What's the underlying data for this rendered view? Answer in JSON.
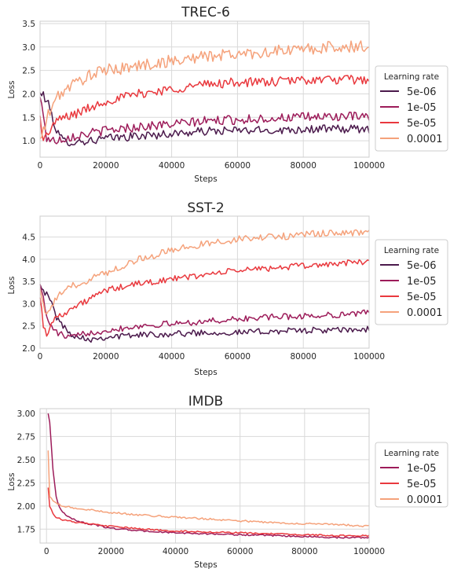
{
  "chart_data": [
    {
      "type": "line",
      "title": "TREC-6",
      "xlabel": "Steps",
      "ylabel": "Loss",
      "xlim": [
        0,
        100000
      ],
      "ylim": [
        0.65,
        3.55
      ],
      "xticks": [
        0,
        20000,
        40000,
        60000,
        80000,
        100000
      ],
      "xtick_labels": [
        "0",
        "20000",
        "40000",
        "60000",
        "80000",
        "100000"
      ],
      "yticks": [
        1.0,
        1.5,
        2.0,
        2.5,
        3.0,
        3.5
      ],
      "ytick_labels": [
        "1.0",
        "1.5",
        "2.0",
        "2.5",
        "3.0",
        "3.5"
      ],
      "grid": true,
      "legend": {
        "title": "Learning rate",
        "placement": "right-outside"
      },
      "series": [
        {
          "name": "5e-06",
          "color": "#4b1a4c",
          "x": [
            0,
            1000,
            3000,
            5000,
            7000,
            10000,
            15000,
            20000,
            30000,
            40000,
            50000,
            60000,
            70000,
            80000,
            90000,
            100000
          ],
          "y": [
            2.0,
            1.98,
            1.7,
            1.2,
            1.0,
            0.97,
            1.0,
            1.05,
            1.1,
            1.15,
            1.2,
            1.22,
            1.22,
            1.25,
            1.25,
            1.25
          ],
          "noise": 0.09
        },
        {
          "name": "1e-05",
          "color": "#9d1c5a",
          "x": [
            0,
            1000,
            2000,
            4000,
            7000,
            10000,
            20000,
            30000,
            40000,
            50000,
            60000,
            70000,
            80000,
            90000,
            100000
          ],
          "y": [
            1.9,
            1.6,
            1.05,
            1.0,
            1.05,
            1.1,
            1.22,
            1.3,
            1.35,
            1.42,
            1.45,
            1.48,
            1.5,
            1.52,
            1.5
          ],
          "noise": 0.1
        },
        {
          "name": "5e-05",
          "color": "#e9393e",
          "x": [
            0,
            1000,
            2000,
            4000,
            7000,
            10000,
            15000,
            20000,
            30000,
            40000,
            50000,
            60000,
            70000,
            80000,
            90000,
            100000
          ],
          "y": [
            1.5,
            1.0,
            1.1,
            1.35,
            1.5,
            1.55,
            1.7,
            1.85,
            2.0,
            2.1,
            2.2,
            2.25,
            2.25,
            2.3,
            2.3,
            2.3
          ],
          "noise": 0.1
        },
        {
          "name": "0.0001",
          "color": "#f5a27b",
          "x": [
            0,
            1000,
            2000,
            4000,
            6000,
            10000,
            15000,
            20000,
            30000,
            40000,
            50000,
            60000,
            70000,
            80000,
            90000,
            100000
          ],
          "y": [
            1.0,
            1.2,
            1.45,
            1.8,
            2.0,
            2.2,
            2.4,
            2.5,
            2.6,
            2.7,
            2.8,
            2.85,
            2.9,
            2.95,
            3.0,
            3.0
          ],
          "noise": 0.13
        }
      ]
    },
    {
      "type": "line",
      "title": "SST-2",
      "xlabel": "Steps",
      "ylabel": "Loss",
      "xlim": [
        0,
        100000
      ],
      "ylim": [
        2.0,
        4.97
      ],
      "xticks": [
        0,
        20000,
        40000,
        60000,
        80000,
        100000
      ],
      "xtick_labels": [
        "0",
        "20000",
        "40000",
        "60000",
        "80000",
        "100000"
      ],
      "yticks": [
        2.0,
        2.5,
        3.0,
        3.5,
        4.0,
        4.5
      ],
      "ytick_labels": [
        "2.0",
        "2.5",
        "3.0",
        "3.5",
        "4.0",
        "4.5"
      ],
      "grid": true,
      "legend": {
        "title": "Learning rate",
        "placement": "right-outside"
      },
      "series": [
        {
          "name": "5e-06",
          "color": "#4b1a4c",
          "x": [
            0,
            1000,
            3000,
            5000,
            8000,
            10000,
            15000,
            20000,
            30000,
            40000,
            50000,
            60000,
            70000,
            80000,
            90000,
            100000
          ],
          "y": [
            3.5,
            3.3,
            3.1,
            2.7,
            2.4,
            2.3,
            2.2,
            2.25,
            2.3,
            2.32,
            2.35,
            2.35,
            2.38,
            2.4,
            2.4,
            2.42
          ],
          "noise": 0.07
        },
        {
          "name": "1e-05",
          "color": "#9d1c5a",
          "x": [
            0,
            1000,
            2000,
            4000,
            8000,
            10000,
            15000,
            20000,
            30000,
            40000,
            50000,
            60000,
            70000,
            80000,
            90000,
            100000
          ],
          "y": [
            3.5,
            3.1,
            2.7,
            2.4,
            2.25,
            2.25,
            2.35,
            2.4,
            2.5,
            2.55,
            2.6,
            2.65,
            2.7,
            2.72,
            2.75,
            2.8
          ],
          "noise": 0.07
        },
        {
          "name": "5e-05",
          "color": "#e9393e",
          "x": [
            0,
            1000,
            2000,
            3000,
            5000,
            10000,
            15000,
            20000,
            30000,
            40000,
            50000,
            60000,
            70000,
            80000,
            90000,
            100000
          ],
          "y": [
            3.2,
            2.5,
            2.3,
            2.5,
            2.7,
            2.9,
            3.1,
            3.3,
            3.45,
            3.55,
            3.65,
            3.75,
            3.8,
            3.85,
            3.9,
            3.95
          ],
          "noise": 0.07
        },
        {
          "name": "0.0001",
          "color": "#f5a27b",
          "x": [
            0,
            1000,
            2000,
            3000,
            6000,
            10000,
            15000,
            20000,
            30000,
            40000,
            50000,
            60000,
            70000,
            80000,
            90000,
            100000
          ],
          "y": [
            3.4,
            3.0,
            2.7,
            2.9,
            3.2,
            3.4,
            3.55,
            3.7,
            4.0,
            4.2,
            4.35,
            4.45,
            4.5,
            4.55,
            4.6,
            4.6
          ],
          "noise": 0.08
        }
      ]
    },
    {
      "type": "line",
      "title": "IMDB",
      "xlabel": "Steps",
      "ylabel": "Loss",
      "xlim": [
        -2000,
        100000
      ],
      "ylim": [
        1.6,
        3.05
      ],
      "xticks": [
        0,
        20000,
        40000,
        60000,
        80000,
        100000
      ],
      "xtick_labels": [
        "0",
        "20000",
        "40000",
        "60000",
        "80000",
        "100000"
      ],
      "yticks": [
        1.75,
        2.0,
        2.25,
        2.5,
        2.75,
        3.0
      ],
      "ytick_labels": [
        "1.75",
        "2.00",
        "2.25",
        "2.50",
        "2.75",
        "3.00"
      ],
      "grid": true,
      "legend": {
        "title": "Learning rate",
        "placement": "right-outside"
      },
      "series": [
        {
          "name": "1e-05",
          "color": "#9d1c5a",
          "x": [
            500,
            1000,
            2000,
            3000,
            4000,
            6000,
            10000,
            20000,
            30000,
            40000,
            50000,
            60000,
            70000,
            80000,
            90000,
            100000
          ],
          "y": [
            3.0,
            2.9,
            2.4,
            2.1,
            1.98,
            1.9,
            1.83,
            1.76,
            1.73,
            1.71,
            1.7,
            1.69,
            1.68,
            1.67,
            1.66,
            1.66
          ],
          "noise": 0.008
        },
        {
          "name": "5e-05",
          "color": "#e9393e",
          "x": [
            500,
            1000,
            2000,
            3000,
            5000,
            10000,
            20000,
            30000,
            40000,
            50000,
            60000,
            70000,
            80000,
            90000,
            100000
          ],
          "y": [
            2.2,
            2.0,
            1.92,
            1.88,
            1.85,
            1.82,
            1.78,
            1.75,
            1.73,
            1.72,
            1.71,
            1.7,
            1.69,
            1.68,
            1.68
          ],
          "noise": 0.008
        },
        {
          "name": "0.0001",
          "color": "#f5a27b",
          "x": [
            500,
            1000,
            2000,
            3000,
            5000,
            10000,
            20000,
            30000,
            40000,
            50000,
            60000,
            70000,
            80000,
            90000,
            100000
          ],
          "y": [
            2.6,
            2.1,
            2.05,
            2.03,
            2.0,
            1.97,
            1.93,
            1.9,
            1.88,
            1.86,
            1.84,
            1.82,
            1.81,
            1.8,
            1.78
          ],
          "noise": 0.01
        }
      ]
    }
  ]
}
